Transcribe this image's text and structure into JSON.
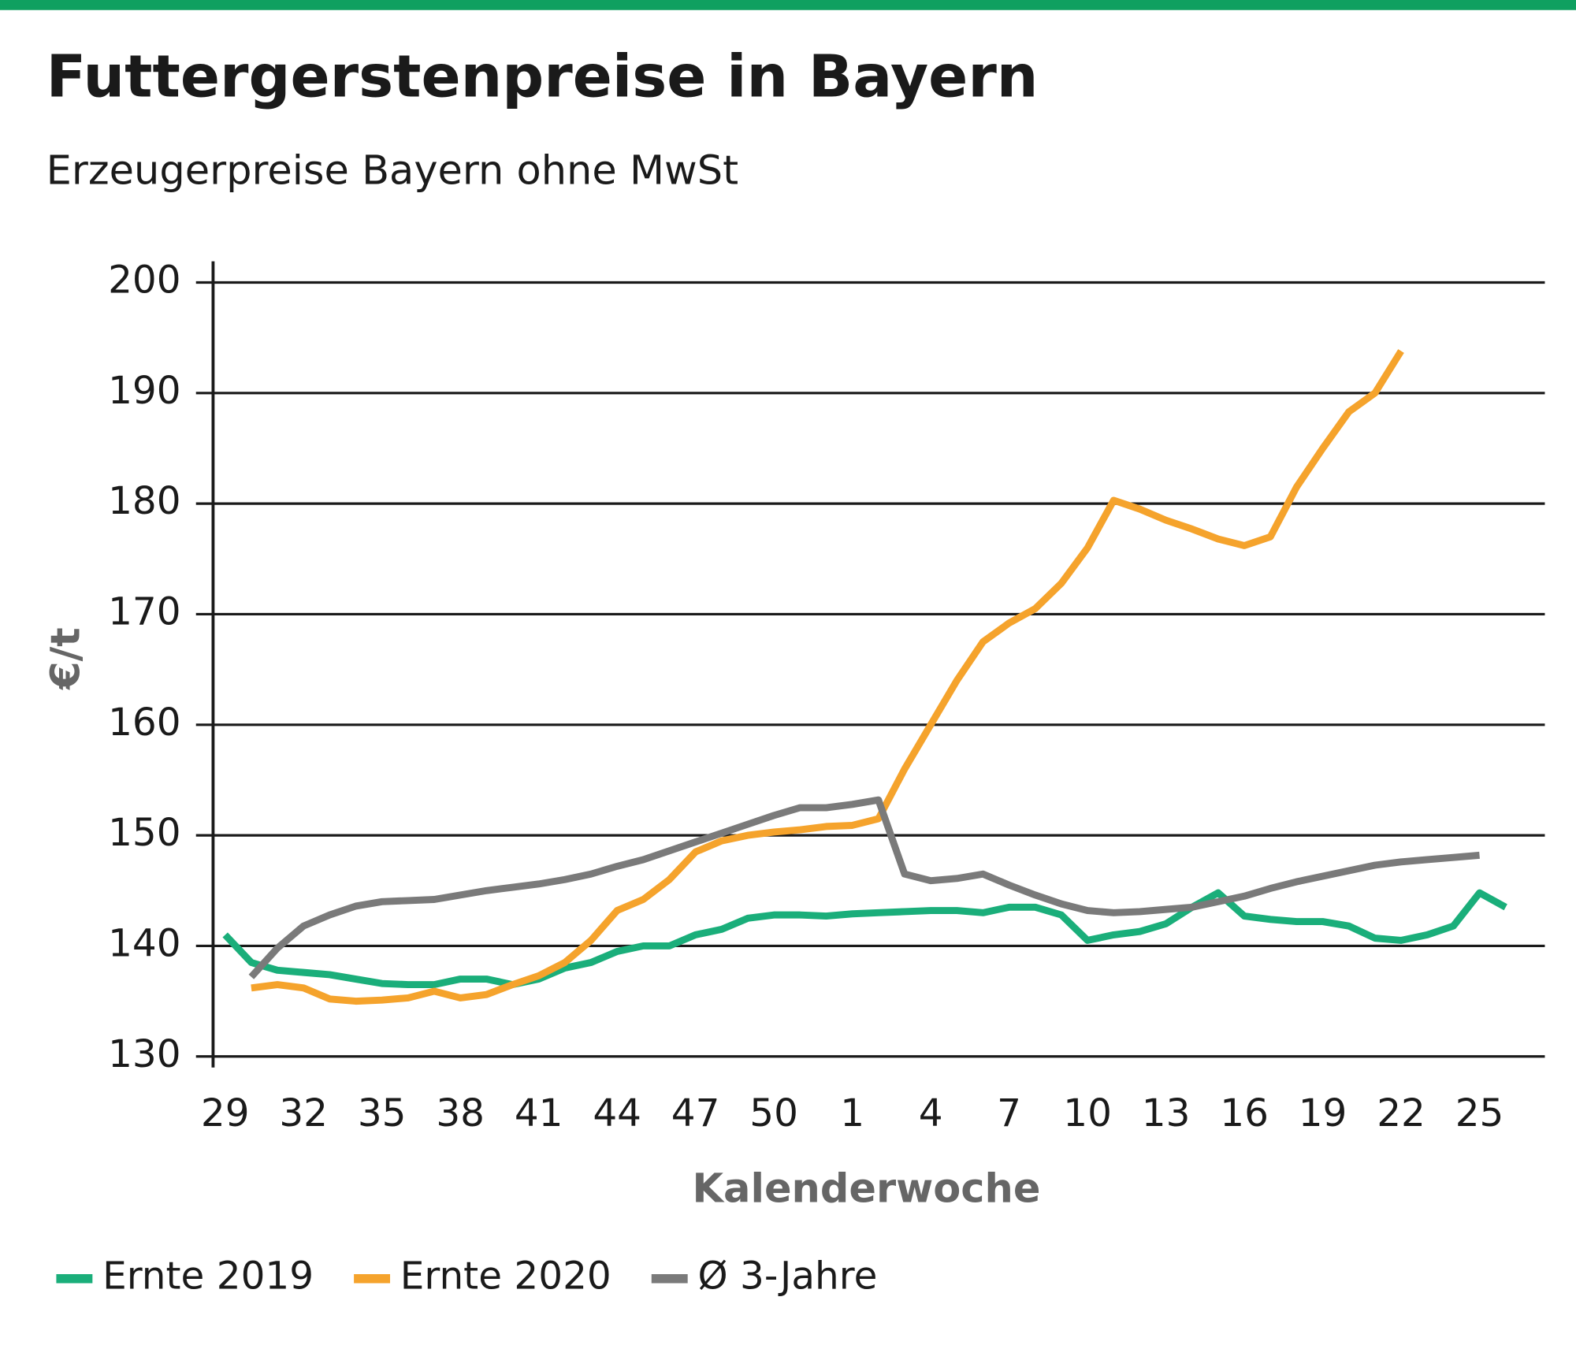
{
  "chart_data": {
    "type": "line",
    "title": "Futtergerstenpreise in Bayern",
    "subtitle": "Erzeugerpreise Bayern ohne MwSt",
    "y_label": "€/t",
    "x_label": "Kalenderwoche",
    "categories": [
      "29",
      null,
      null,
      "32",
      null,
      null,
      "35",
      null,
      null,
      "38",
      null,
      null,
      "41",
      null,
      null,
      "44",
      null,
      null,
      "47",
      null,
      null,
      "50",
      null,
      null,
      "1",
      null,
      null,
      "4",
      null,
      null,
      "7",
      null,
      null,
      "10",
      null,
      null,
      "13",
      null,
      null,
      "16",
      null,
      null,
      "19",
      null,
      null,
      "22",
      null,
      null,
      "25",
      null
    ],
    "series": [
      {
        "name": "Ernte 2019",
        "color": "#1aae7a",
        "values": [
          141,
          138.5,
          137.8,
          137.6,
          137.4,
          137,
          136.6,
          136.5,
          136.5,
          137,
          137,
          136.5,
          137,
          138,
          138.5,
          139.5,
          140,
          140,
          141,
          141.5,
          142.5,
          142.8,
          142.8,
          142.7,
          142.9,
          143,
          143.1,
          143.2,
          143.2,
          143,
          143.5,
          143.5,
          142.8,
          140.5,
          141,
          141.3,
          142,
          143.5,
          144.8,
          142.7,
          142.4,
          142.2,
          142.2,
          141.8,
          140.7,
          140.5,
          141,
          141.8,
          144.8,
          143.5
        ]
      },
      {
        "name": "Ernte 2020",
        "color": "#f5a32c",
        "values": [
          null,
          136.2,
          136.5,
          136.2,
          135.2,
          135,
          135.1,
          135.3,
          135.9,
          135.3,
          135.6,
          136.5,
          137.3,
          138.5,
          140.5,
          143.2,
          144.2,
          146,
          148.5,
          149.5,
          150,
          150.3,
          150.5,
          150.8,
          150.9,
          151.5,
          156,
          160,
          164,
          167.5,
          169.2,
          170.5,
          172.8,
          176,
          180.3,
          179.5,
          178.5,
          177.7,
          176.8,
          176.2,
          177,
          181.5,
          185,
          188.3,
          190,
          193.8,
          null,
          null,
          null,
          null
        ]
      },
      {
        "name": "Ø 3-Jahre",
        "color": "#7a7a7a",
        "values": [
          null,
          137.2,
          139.8,
          141.8,
          142.8,
          143.6,
          144,
          144.1,
          144.2,
          144.6,
          145,
          145.3,
          145.6,
          146,
          146.5,
          147.2,
          147.8,
          148.6,
          149.4,
          150.2,
          151,
          151.8,
          152.5,
          152.5,
          152.8,
          153.2,
          146.5,
          145.9,
          146.1,
          146.5,
          145.5,
          144.6,
          143.8,
          143.2,
          143,
          143.1,
          143.3,
          143.5,
          144,
          144.5,
          145.2,
          145.8,
          146.3,
          146.8,
          147.3,
          147.6,
          147.8,
          148,
          148.2,
          null
        ]
      }
    ],
    "ylim": [
      130,
      200
    ],
    "yticks": [
      130,
      140,
      150,
      160,
      170,
      180,
      190,
      200
    ],
    "grid": true,
    "legend": "bottom"
  }
}
